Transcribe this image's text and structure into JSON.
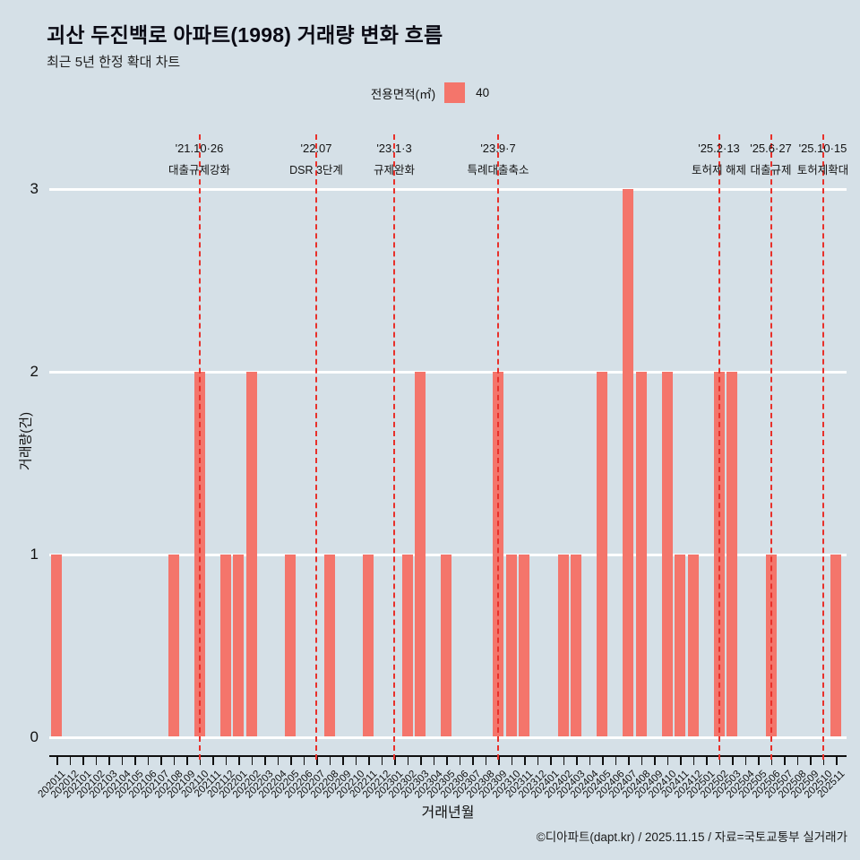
{
  "header": {
    "title": "괴산 두진백로 아파트(1998) 거래량 변화 흐름",
    "subtitle": "최근 5년 한정 확대 차트"
  },
  "legend": {
    "label": "전용면적(㎡)",
    "series_name": "40",
    "swatch_color": "#f4756b"
  },
  "chart_data": {
    "type": "bar",
    "title": "괴산 두진백로 아파트(1998) 거래량 변화 흐름",
    "subtitle": "최근 5년 한정 확대 차트",
    "xlabel": "거래년월",
    "ylabel": "거래량(건)",
    "ylim": [
      0,
      3
    ],
    "yticks": [
      0,
      1,
      2,
      3
    ],
    "grid": true,
    "legend_position": "top",
    "bar_color": "#f4756b",
    "vline_color": "#e8302a",
    "categories": [
      "202011",
      "202012",
      "202101",
      "202102",
      "202103",
      "202104",
      "202105",
      "202106",
      "202107",
      "202108",
      "202109",
      "202110",
      "202111",
      "202112",
      "202201",
      "202202",
      "202203",
      "202204",
      "202205",
      "202206",
      "202207",
      "202208",
      "202209",
      "202210",
      "202211",
      "202212",
      "202301",
      "202302",
      "202303",
      "202304",
      "202305",
      "202306",
      "202307",
      "202308",
      "202309",
      "202310",
      "202311",
      "202312",
      "202401",
      "202402",
      "202403",
      "202404",
      "202405",
      "202406",
      "202407",
      "202408",
      "202409",
      "202410",
      "202411",
      "202412",
      "202501",
      "202502",
      "202503",
      "202504",
      "202505",
      "202506",
      "202507",
      "202508",
      "202509",
      "202510",
      "202511"
    ],
    "values": [
      1,
      0,
      0,
      0,
      0,
      0,
      0,
      0,
      0,
      1,
      0,
      2,
      0,
      1,
      1,
      2,
      0,
      0,
      1,
      0,
      0,
      1,
      0,
      0,
      1,
      0,
      0,
      1,
      2,
      0,
      1,
      0,
      0,
      0,
      2,
      1,
      1,
      0,
      0,
      1,
      1,
      0,
      2,
      0,
      3,
      2,
      0,
      2,
      1,
      1,
      0,
      2,
      2,
      0,
      0,
      1,
      0,
      0,
      0,
      0,
      1
    ],
    "annotations": [
      {
        "date": "'21.10·26",
        "label": "대출규제강화",
        "category": "202110"
      },
      {
        "date": "'22.07",
        "label": "DSR 3단계",
        "category": "202207"
      },
      {
        "date": "'23.1·3",
        "label": "규제완화",
        "category": "202301"
      },
      {
        "date": "'23.9·7",
        "label": "특례대출축소",
        "category": "202309"
      },
      {
        "date": "'25.2·13",
        "label": "토허제 해제",
        "category": "202502"
      },
      {
        "date": "'25.6·27",
        "label": "대출규제",
        "category": "202506"
      },
      {
        "date": "'25.10·15",
        "label": "토허제확대",
        "category": "202510"
      }
    ]
  },
  "footer": {
    "credit": "©디아파트(dapt.kr) / 2025.11.15 / 자료=국토교통부 실거래가"
  }
}
